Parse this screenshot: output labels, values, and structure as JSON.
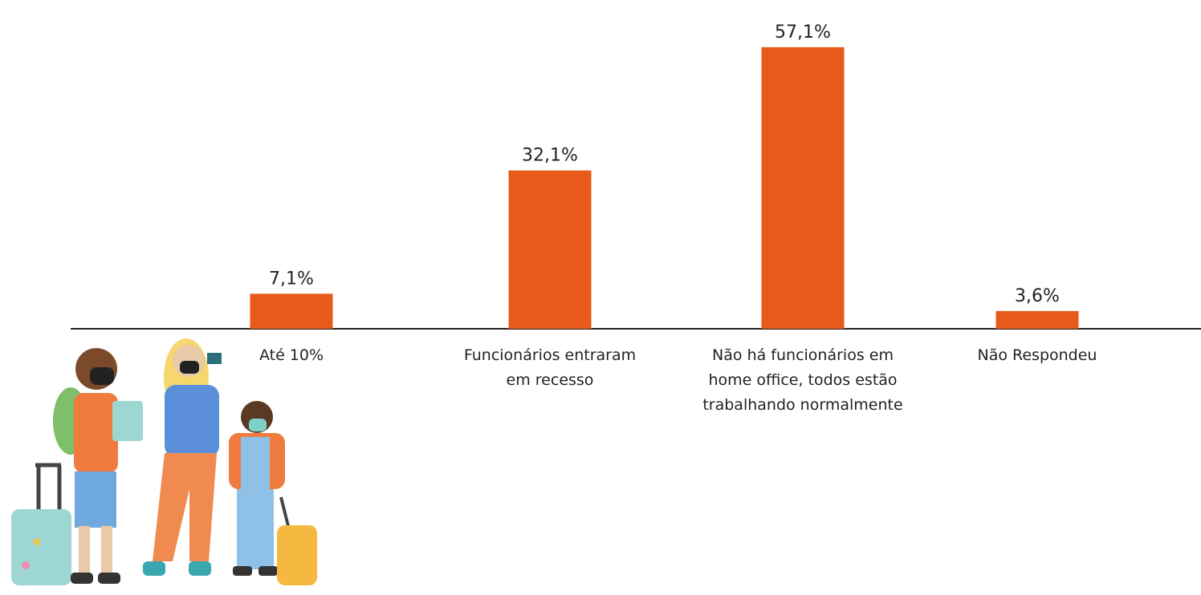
{
  "chart_data": {
    "type": "bar",
    "categories": [
      "Até 10%",
      "Funcionários entraram em recesso",
      "Não há funcionários em home office, todos estão trabalhando normalmente",
      "Não Respondeu"
    ],
    "values": [
      7.1,
      32.1,
      57.1,
      3.6
    ],
    "value_labels": [
      "7,1%",
      "32,1%",
      "57,1%",
      "3,6%"
    ],
    "color": "#e8591a"
  }
}
